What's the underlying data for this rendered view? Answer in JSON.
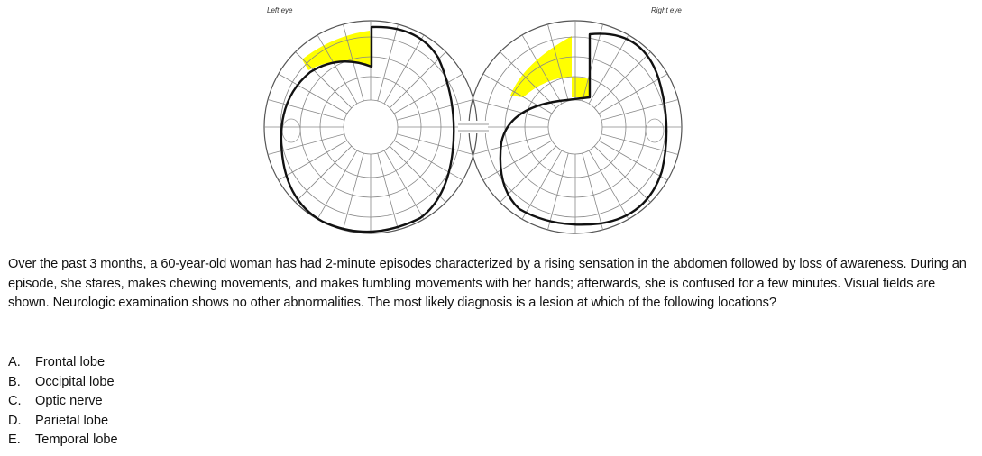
{
  "figure": {
    "left_eye_label": "Left eye",
    "right_eye_label": "Right eye",
    "highlight_color": "#ffff00",
    "deficit": "superior homonymous quadrantanopia (pie in the sky)"
  },
  "question": {
    "stem": "Over the past 3 months, a 60-year-old woman has had 2-minute episodes characterized by a rising sensation in the abdomen followed by loss of awareness. During an episode, she stares, makes chewing movements, and makes fumbling movements with her hands; afterwards, she is confused for a few minutes. Visual fields are shown. Neurologic examination shows no other abnormalities. The most likely diagnosis is a lesion at which of the following locations?"
  },
  "options": [
    {
      "letter": "A.",
      "text": "Frontal lobe"
    },
    {
      "letter": "B.",
      "text": "Occipital lobe"
    },
    {
      "letter": "C.",
      "text": "Optic nerve"
    },
    {
      "letter": "D.",
      "text": "Parietal lobe"
    },
    {
      "letter": "E.",
      "text": "Temporal lobe"
    }
  ]
}
